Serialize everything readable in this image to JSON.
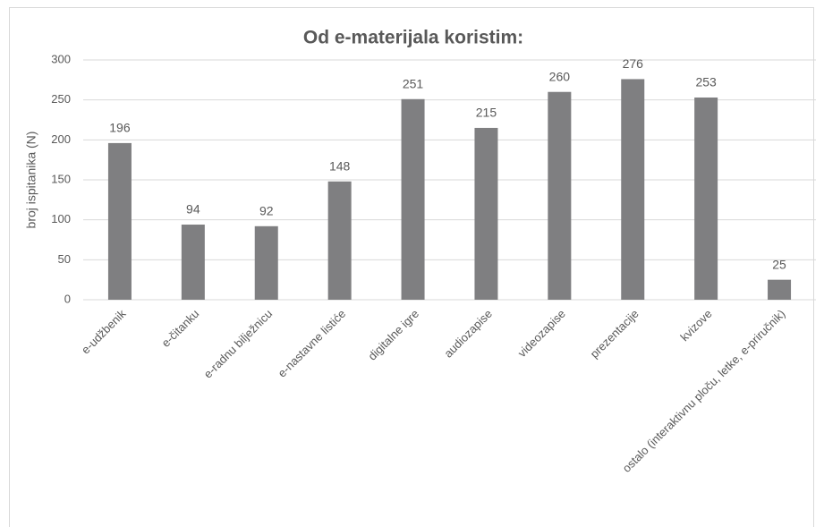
{
  "chart_data": {
    "type": "bar",
    "title": "Od e-materijala koristim:",
    "y_label": "broj ispitanika (N)",
    "categories": [
      "e-udžbenik",
      "e-čitanku",
      "e-radnu bilježnicu",
      "e-nastavne listiće",
      "digitalne igre",
      "audiozapise",
      "videozapise",
      "prezentacije",
      "kvizove",
      "ostalo (interaktivnu ploču, letke, e-priručnik)"
    ],
    "values": [
      196,
      94,
      92,
      148,
      251,
      215,
      260,
      276,
      253,
      25
    ],
    "color": "#7f7f81",
    "ylim": [
      0,
      300
    ],
    "yticks": [
      0,
      50,
      100,
      150,
      200,
      250,
      300
    ],
    "grid": true
  }
}
